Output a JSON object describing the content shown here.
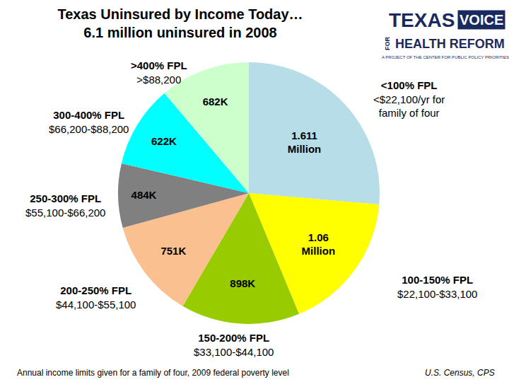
{
  "chart_data": {
    "type": "pie",
    "title": "Texas Uninsured by Income Today…\n6.1 million uninsured in 2008",
    "categories": [
      "<100% FPL",
      "100-150% FPL",
      "150-200% FPL",
      "200-250% FPL",
      "250-300% FPL",
      "300-400% FPL",
      ">400% FPL"
    ],
    "income_ranges": [
      "<$22,100/yr for\nfamily of four",
      "$22,100-$33,100",
      "$33,100-$44,100",
      "$44,100-$55,100",
      "$55,100-$66,200",
      "$66,200-$88,200",
      ">$88,200"
    ],
    "values": [
      1611000,
      1060000,
      898000,
      751000,
      484000,
      622000,
      682000
    ],
    "value_labels": [
      "1.611 Million",
      "1.06 Million",
      "898K",
      "751K",
      "484K",
      "622K",
      "682K"
    ],
    "colors": [
      "#b7dde8",
      "#ffff00",
      "#99cc00",
      "#fac090",
      "#808080",
      "#00ffff",
      "#ccffcc"
    ],
    "data_labels": true,
    "footnote": "Annual income limits given for a family of four, 2009 federal poverty level",
    "source": "U.S. Census, CPS",
    "logo": {
      "texts": [
        "TEXAS",
        "VOICE",
        "FOR",
        "HEALTH REFORM",
        "A PROJECT OF THE CENTER FOR PUBLIC POLICY PRIORITIES"
      ]
    }
  }
}
